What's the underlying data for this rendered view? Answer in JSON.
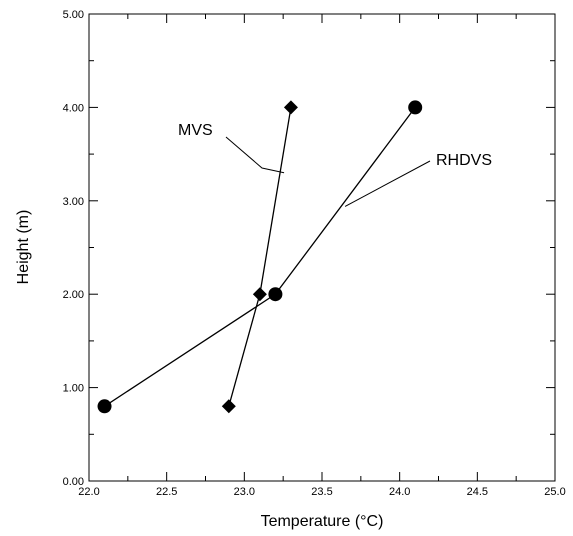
{
  "chart_data": {
    "type": "line",
    "xlabel": "Temperature (°C)",
    "ylabel": "Height (m)",
    "xlim": [
      22.0,
      25.0
    ],
    "ylim": [
      0.0,
      5.0
    ],
    "xticks": [
      "22.0",
      "22.5",
      "23.0",
      "23.5",
      "24.0",
      "24.5",
      "25.0"
    ],
    "yticks": [
      "0.00",
      "1.00",
      "2.00",
      "3.00",
      "4.00",
      "5.00"
    ],
    "grid": false,
    "series": [
      {
        "name": "MVS",
        "marker": "diamond",
        "x": [
          22.9,
          23.1,
          23.3
        ],
        "y": [
          0.8,
          2.0,
          4.0
        ]
      },
      {
        "name": "RHDVS",
        "marker": "circle",
        "x": [
          22.1,
          23.2,
          24.1
        ],
        "y": [
          0.8,
          2.0,
          4.0
        ]
      }
    ],
    "colors": {
      "line": "#000000",
      "marker": "#000000"
    }
  }
}
